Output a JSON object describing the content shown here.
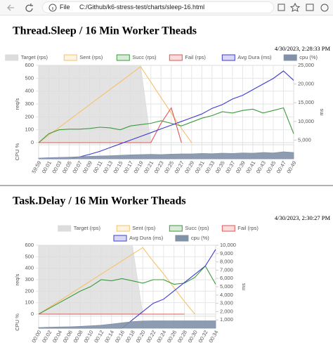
{
  "browser": {
    "file": "File",
    "url": "C:/Github/k6-stress-test/charts/sleep-16.html"
  },
  "chart_data": [
    {
      "type": "line",
      "title": "Thread.Sleep / 16 Min Worker Theads",
      "subtitle": "4/30/2023, 2:28:33 PM",
      "categories": [
        "59:59",
        "00:01",
        "00:03",
        "00:05",
        "00:07",
        "00:09",
        "00:11",
        "00:13",
        "00:15",
        "00:17",
        "00:19",
        "00:21",
        "00:23",
        "00:25",
        "00:27",
        "00:29",
        "00:31",
        "00:33",
        "00:35",
        "00:37",
        "00:39",
        "00:41",
        "00:43",
        "00:45",
        "00:47",
        "00:49"
      ],
      "series": [
        {
          "name": "Target (rps)",
          "color": "#dcdcdc",
          "fill": true,
          "values": [
            600,
            600,
            600,
            600,
            600,
            600,
            600,
            600,
            600,
            600,
            600,
            0,
            0,
            0,
            0,
            0,
            0,
            0,
            0,
            0,
            0,
            0,
            0,
            0,
            0,
            0
          ]
        },
        {
          "name": "Sent (rps)",
          "color": "#f5c26b",
          "values": [
            0,
            59,
            118,
            177,
            236,
            295,
            354,
            413,
            472,
            531,
            590,
            470,
            350,
            230,
            110,
            0,
            null,
            null,
            null,
            null,
            null,
            null,
            null,
            null,
            null,
            null
          ]
        },
        {
          "name": "Succ (rps)",
          "color": "#3c9a3c",
          "values": [
            0,
            70,
            100,
            105,
            105,
            110,
            120,
            115,
            100,
            130,
            140,
            150,
            170,
            150,
            130,
            160,
            190,
            210,
            240,
            230,
            250,
            260,
            230,
            250,
            270,
            70
          ]
        },
        {
          "name": "Fail (rps)",
          "color": "#e05555",
          "values": [
            0,
            0,
            0,
            0,
            0,
            0,
            0,
            0,
            0,
            0,
            0,
            0,
            150,
            270,
            0,
            null,
            null,
            null,
            null,
            null,
            null,
            null,
            null,
            null,
            null,
            null
          ]
        },
        {
          "name": "Avg Dura (ms)",
          "color": "#3b3bd0",
          "axis": "y2",
          "values": [
            0,
            0,
            0,
            0,
            500,
            1200,
            2000,
            3000,
            4000,
            5000,
            6000,
            7000,
            8000,
            9000,
            10000,
            11000,
            12000,
            13500,
            14500,
            16000,
            17000,
            18500,
            20000,
            21500,
            23500,
            21000
          ]
        },
        {
          "name": "cpu (%)",
          "color": "#8191a8",
          "fill": true,
          "axis": "y3",
          "values": [
            5,
            8,
            10,
            12,
            15,
            18,
            20,
            22,
            25,
            28,
            30,
            32,
            30,
            33,
            35,
            35,
            38,
            36,
            40,
            38,
            42,
            40,
            45,
            42,
            50,
            45
          ]
        }
      ],
      "ylabel": "req/s",
      "y2label": "ms",
      "y3label": "CPU %",
      "ylim": [
        0,
        600
      ],
      "yticks": [
        0,
        100,
        200,
        300,
        400,
        500,
        600
      ],
      "y2lim": [
        0,
        25000
      ],
      "y2ticks": [
        {
          "value": 5000,
          "label": "5,000"
        },
        {
          "value": 10000,
          "label": "10,000"
        },
        {
          "value": 15000,
          "label": "15,000"
        },
        {
          "value": 20000,
          "label": "20,000"
        },
        {
          "value": 25000,
          "label": "25,000"
        }
      ],
      "y3lim": [
        0,
        100
      ],
      "grid": true
    },
    {
      "type": "line",
      "title": "Task.Delay / 16 Min Worker Theads",
      "subtitle": "4/30/2023, 2:30:27 PM",
      "categories": [
        "00:00",
        "00:02",
        "00:04",
        "00:06",
        "00:08",
        "00:10",
        "00:12",
        "00:14",
        "00:16",
        "00:18",
        "00:20",
        "00:22",
        "00:24",
        "00:26",
        "00:28",
        "00:30",
        "00:32",
        "00:34"
      ],
      "series": [
        {
          "name": "Target (rps)",
          "color": "#dcdcdc",
          "fill": true,
          "values": [
            600,
            600,
            600,
            600,
            600,
            600,
            600,
            600,
            600,
            600,
            0,
            0,
            0,
            0,
            0,
            0,
            0,
            0
          ]
        },
        {
          "name": "Sent (rps)",
          "color": "#f5c26b",
          "values": [
            0,
            58,
            116,
            174,
            232,
            290,
            348,
            406,
            464,
            522,
            580,
            460,
            350,
            230,
            110,
            0,
            null,
            null
          ]
        },
        {
          "name": "Succ (rps)",
          "color": "#3c9a3c",
          "values": [
            0,
            50,
            100,
            150,
            200,
            240,
            300,
            290,
            310,
            290,
            270,
            300,
            300,
            260,
            270,
            320,
            420,
            260
          ]
        },
        {
          "name": "Fail (rps)",
          "color": "#e05555",
          "values": [
            0,
            0,
            0,
            0,
            0,
            0,
            0,
            0,
            0,
            0,
            0,
            0,
            0,
            0,
            0,
            null,
            null,
            null
          ]
        },
        {
          "name": "Avg Dura (ms)",
          "color": "#3b3bd0",
          "axis": "y2",
          "values": [
            0,
            0,
            0,
            0,
            0,
            0,
            0,
            0,
            0,
            1000,
            2000,
            3000,
            3500,
            4500,
            5500,
            6500,
            7500,
            9500
          ]
        },
        {
          "name": "cpu (%)",
          "color": "#8191a8",
          "fill": true,
          "axis": "y3",
          "values": [
            5,
            8,
            10,
            12,
            15,
            20,
            25,
            35,
            45,
            55,
            60,
            62,
            62,
            62,
            62,
            62,
            62,
            62
          ]
        }
      ],
      "ylabel": "req/s",
      "y2label": "ms",
      "y3label": "CPU %",
      "ylim": [
        0,
        600
      ],
      "yticks": [
        0,
        100,
        200,
        300,
        400,
        500,
        600
      ],
      "y2lim": [
        0,
        10000
      ],
      "y2ticks": [
        {
          "value": 1000,
          "label": "1,000"
        },
        {
          "value": 2000,
          "label": "2,000"
        },
        {
          "value": 3000,
          "label": "3,000"
        },
        {
          "value": 4000,
          "label": "4,000"
        },
        {
          "value": 5000,
          "label": "5,000"
        },
        {
          "value": 6000,
          "label": "6,000"
        },
        {
          "value": 7000,
          "label": "7,000"
        },
        {
          "value": 8000,
          "label": "8,000"
        },
        {
          "value": 9000,
          "label": "9,000"
        },
        {
          "value": 10000,
          "label": "10,000"
        }
      ],
      "y3lim": [
        0,
        100
      ],
      "grid": true
    }
  ]
}
